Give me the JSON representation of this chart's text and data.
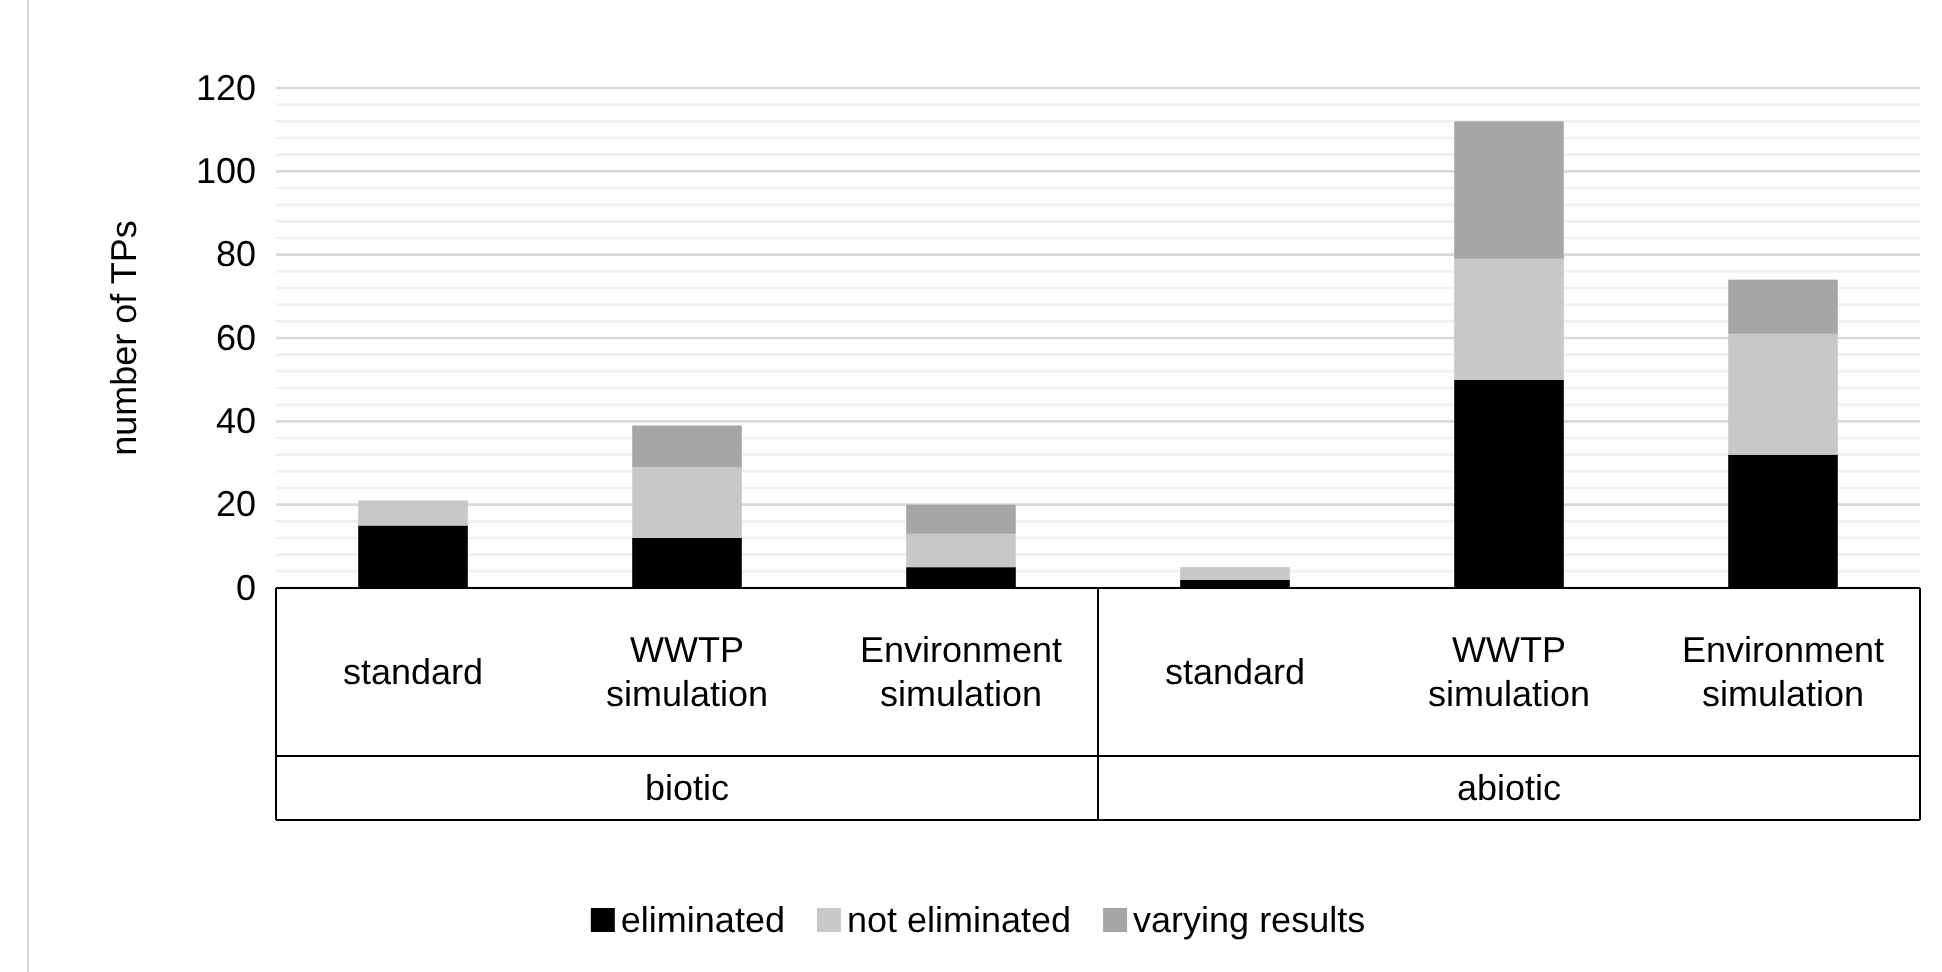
{
  "chart_data": {
    "type": "bar",
    "stacked": true,
    "ylabel": "number of TPs",
    "categories": [
      "standard",
      "WWTP simulation",
      "Environment simulation",
      "standard",
      "WWTP simulation",
      "Environment simulation"
    ],
    "annotations": [
      "biotic",
      "abiotic"
    ],
    "series": [
      {
        "name": "eliminated",
        "color": "#000000",
        "values": [
          15,
          12,
          5,
          2,
          50,
          32
        ]
      },
      {
        "name": "not eliminated",
        "color": "#c8c8c8",
        "values": [
          6,
          17,
          8,
          3,
          29,
          29
        ]
      },
      {
        "name": "varying results",
        "color": "#a6a6a6",
        "values": [
          0,
          10,
          7,
          0,
          33,
          13
        ]
      }
    ],
    "ylim": [
      0,
      120
    ],
    "yticks": [
      0,
      20,
      40,
      60,
      80,
      100,
      120
    ],
    "grid": "y",
    "legend": "bottom"
  }
}
